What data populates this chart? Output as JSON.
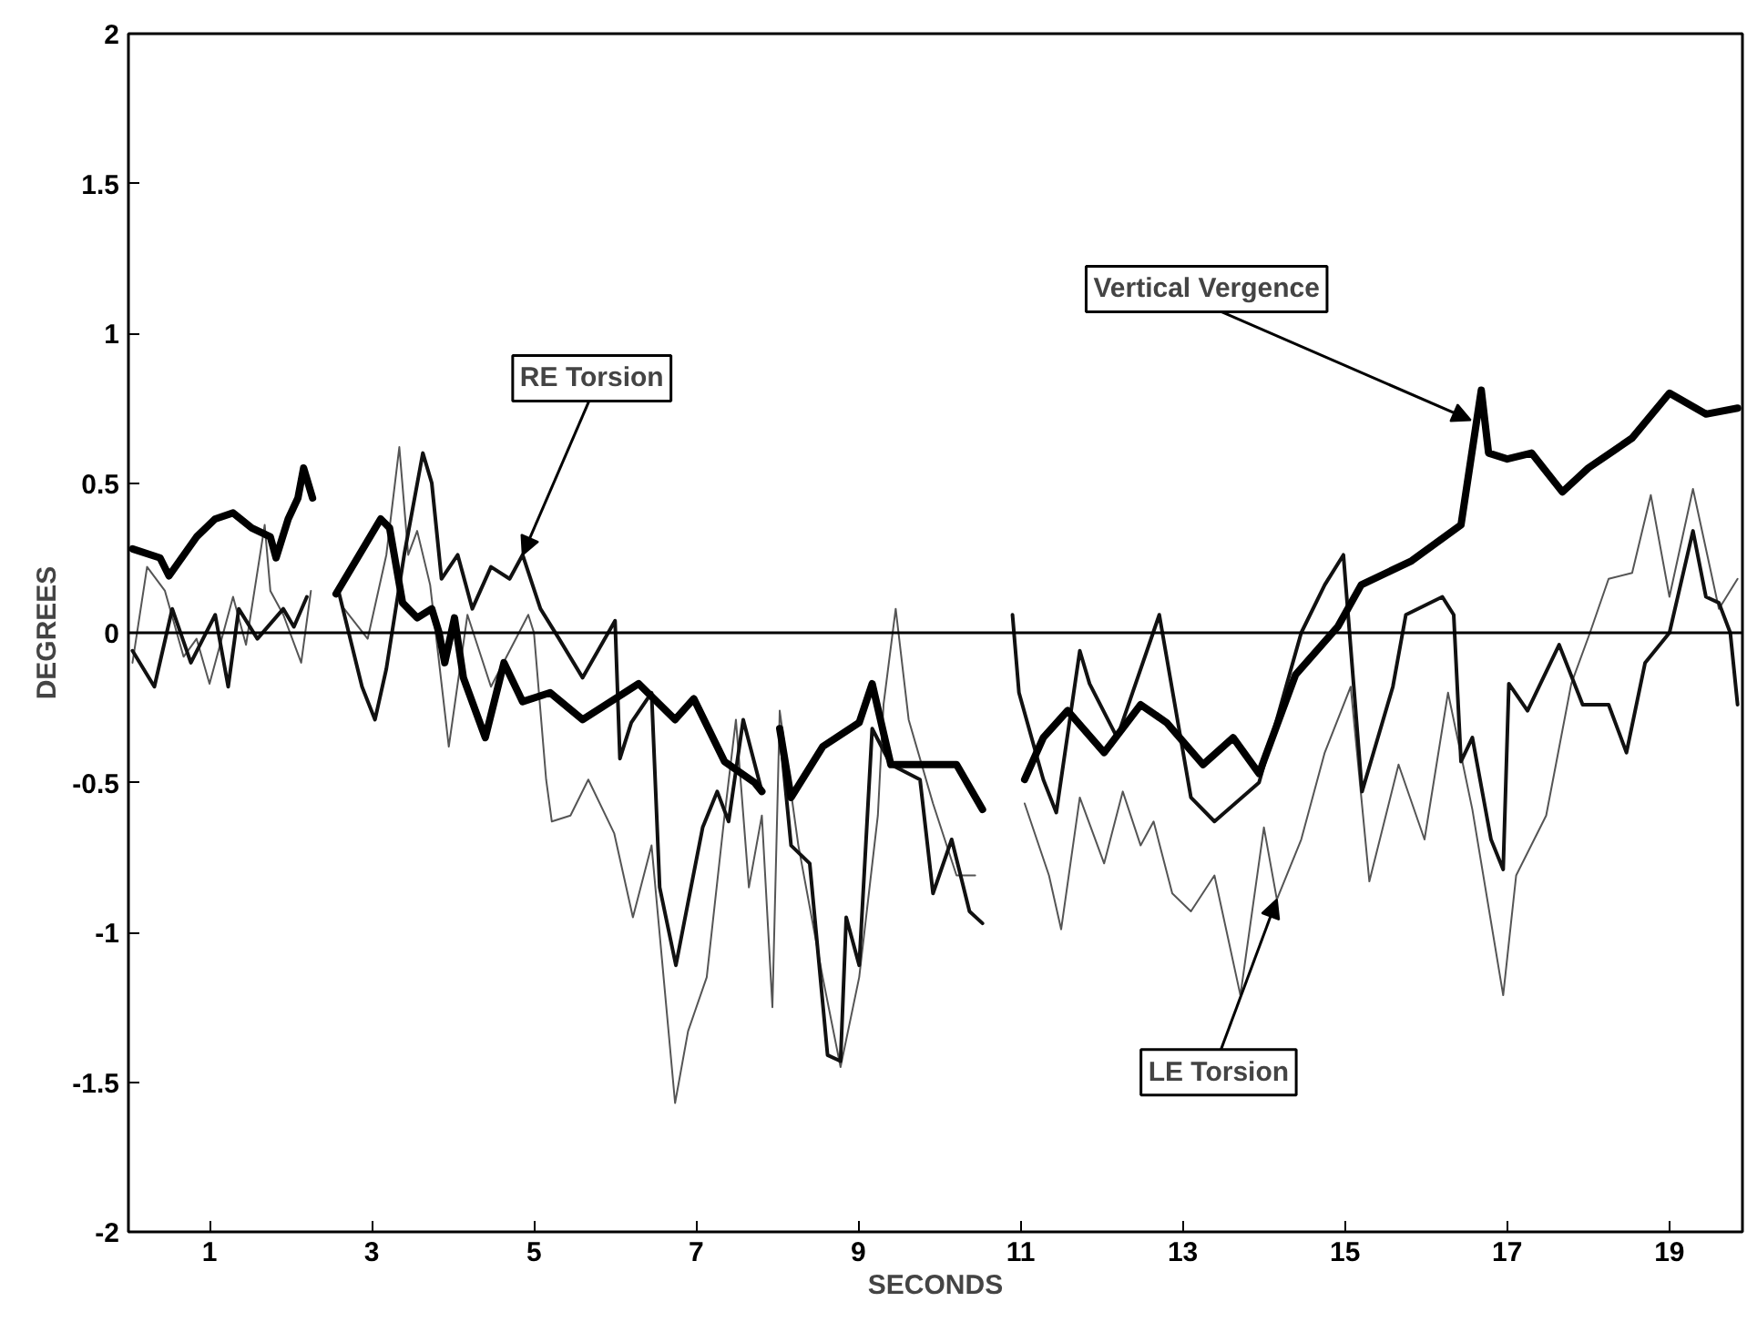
{
  "chart_data": {
    "type": "line",
    "xlabel": "SECONDS",
    "ylabel": "DEGREES",
    "xlim": [
      0,
      19.9
    ],
    "ylim": [
      -2,
      2
    ],
    "xticks": [
      1,
      3,
      5,
      7,
      9,
      11,
      13,
      15,
      17,
      19
    ],
    "yticks": [
      -2,
      -1.5,
      -1,
      -0.5,
      0,
      0.5,
      1,
      1.5,
      2
    ],
    "grid": false,
    "marker": "none",
    "line_style": "solid",
    "ref_lines": [
      {
        "axis": "y",
        "value": 0,
        "color": "#000000"
      }
    ],
    "annotations": [
      {
        "text": "RE Torsion",
        "x": 4.86,
        "y": 0.26
      },
      {
        "text": "Vertical Vergence",
        "x": 16.55,
        "y": 0.71
      },
      {
        "text": "LE Torsion",
        "x": 14.16,
        "y": -0.89
      }
    ],
    "series": [
      {
        "color": "#555555",
        "x": [
          0.05,
          0.23,
          0.45,
          0.68,
          0.84,
          1.0,
          1.29,
          1.45,
          1.68,
          1.75,
          1.91,
          2.13,
          2.25,
          2.45,
          2.66,
          2.95,
          3.18,
          3.34,
          3.45,
          3.56,
          3.72,
          3.95,
          4.18,
          4.47,
          4.93,
          5.0,
          5.15,
          5.22,
          5.45,
          5.67,
          5.99,
          6.22,
          6.45,
          6.74,
          6.9,
          7.13,
          7.35,
          7.49,
          7.65,
          7.81,
          7.94,
          8.03,
          8.26,
          8.56,
          8.78,
          9.01,
          9.24,
          9.31,
          9.46,
          9.62,
          9.92,
          10.21,
          10.44,
          10.7,
          11.05,
          11.35,
          11.5,
          11.73,
          12.03,
          12.26,
          12.48,
          12.64,
          12.87,
          13.1,
          13.39,
          13.71,
          14.0,
          14.16,
          14.46,
          14.75,
          15.07,
          15.3,
          15.66,
          15.98,
          16.27,
          16.57,
          16.95,
          17.11,
          17.48,
          17.79,
          18.02,
          18.25,
          18.54,
          18.77,
          19.0,
          19.29,
          19.61,
          19.84
        ],
        "values": [
          -0.1,
          0.22,
          0.14,
          -0.08,
          -0.02,
          -0.17,
          0.12,
          -0.04,
          0.36,
          0.14,
          0.06,
          -0.1,
          0.14,
          null,
          0.08,
          -0.02,
          0.26,
          0.62,
          0.26,
          0.34,
          0.16,
          -0.38,
          0.06,
          -0.18,
          0.06,
          0,
          -0.49,
          -0.63,
          -0.61,
          -0.49,
          -0.67,
          -0.95,
          -0.71,
          -1.57,
          -1.33,
          -1.15,
          -0.61,
          -0.29,
          -0.85,
          -0.61,
          -1.25,
          -0.26,
          -0.71,
          -1.15,
          -1.45,
          -1.15,
          -0.61,
          -0.24,
          0.08,
          -0.29,
          -0.57,
          -0.81,
          -0.81,
          null,
          -0.57,
          -0.81,
          -0.99,
          -0.55,
          -0.77,
          -0.53,
          -0.71,
          -0.63,
          -0.87,
          -0.93,
          -0.81,
          -1.21,
          -0.65,
          -0.89,
          -0.69,
          -0.4,
          -0.18,
          -0.83,
          -0.44,
          -0.69,
          -0.2,
          -0.59,
          -1.21,
          -0.81,
          -0.61,
          -0.17,
          0,
          0.18,
          0.2,
          0.46,
          0.12,
          0.48,
          0.08,
          0.18
        ]
      },
      {
        "color": "#111111",
        "x": [
          0.05,
          0.32,
          0.54,
          0.77,
          1.07,
          1.23,
          1.36,
          1.59,
          1.91,
          2.04,
          2.2,
          2.4,
          2.59,
          2.88,
          3.04,
          3.18,
          3.4,
          3.63,
          3.74,
          3.86,
          4.06,
          4.24,
          4.47,
          4.7,
          4.86,
          5.08,
          5.31,
          5.6,
          6.0,
          6.06,
          6.2,
          6.45,
          6.55,
          6.75,
          6.9,
          7.08,
          7.26,
          7.4,
          7.58,
          7.81,
          7.92,
          8.03,
          8.17,
          8.4,
          8.62,
          8.78,
          8.85,
          9.01,
          9.17,
          9.4,
          9.76,
          9.92,
          10.15,
          10.37,
          10.53,
          10.7,
          10.9,
          10.98,
          11.28,
          11.44,
          11.73,
          11.85,
          12.19,
          12.71,
          13.1,
          13.39,
          13.94,
          14.46,
          14.75,
          14.98,
          15.21,
          15.59,
          15.75,
          16.2,
          16.34,
          16.43,
          16.57,
          16.8,
          16.95,
          17.02,
          17.25,
          17.64,
          17.93,
          18.25,
          18.47,
          18.7,
          19.0,
          19.29,
          19.45,
          19.61,
          19.75,
          19.84
        ],
        "values": [
          -0.06,
          -0.18,
          0.08,
          -0.1,
          0.06,
          -0.18,
          0.08,
          -0.02,
          0.08,
          0.02,
          0.12,
          null,
          0.14,
          -0.18,
          -0.29,
          -0.12,
          0.26,
          0.6,
          0.5,
          0.18,
          0.26,
          0.08,
          0.22,
          0.18,
          0.26,
          0.08,
          -0.02,
          -0.15,
          0.04,
          -0.42,
          -0.3,
          -0.2,
          -0.85,
          -1.11,
          -0.9,
          -0.65,
          -0.53,
          -0.63,
          -0.29,
          -0.53,
          null,
          -0.32,
          -0.71,
          -0.77,
          -1.41,
          -1.43,
          -0.95,
          -1.11,
          -0.32,
          -0.44,
          -0.49,
          -0.87,
          -0.69,
          -0.93,
          -0.97,
          null,
          0.06,
          -0.2,
          -0.49,
          -0.6,
          -0.06,
          -0.17,
          -0.35,
          0.06,
          -0.55,
          -0.63,
          -0.5,
          0,
          0.16,
          0.26,
          -0.53,
          -0.18,
          0.06,
          0.12,
          0.06,
          -0.43,
          -0.35,
          -0.69,
          -0.79,
          -0.17,
          -0.26,
          -0.04,
          -0.24,
          -0.24,
          -0.4,
          -0.1,
          0,
          0.34,
          0.12,
          0.1,
          0,
          -0.24
        ]
      },
      {
        "color": "#000000",
        "x": [
          0.05,
          0.39,
          0.5,
          0.84,
          1.07,
          1.29,
          1.52,
          1.75,
          1.82,
          1.97,
          2.09,
          2.16,
          2.27,
          2.4,
          2.56,
          3.11,
          3.22,
          3.38,
          3.56,
          3.74,
          3.83,
          3.9,
          4.02,
          4.13,
          4.4,
          4.63,
          4.86,
          5.2,
          5.6,
          6.29,
          6.74,
          6.97,
          7.35,
          7.72,
          7.81,
          7.92,
          8.03,
          8.17,
          8.56,
          9.01,
          9.17,
          9.4,
          9.76,
          10.21,
          10.53,
          10.8,
          11.05,
          11.28,
          11.58,
          12.03,
          12.48,
          12.8,
          13.25,
          13.62,
          13.94,
          14.39,
          14.91,
          15.2,
          15.82,
          16.43,
          16.68,
          16.77,
          17.0,
          17.3,
          17.68,
          18.0,
          18.54,
          19.0,
          19.45,
          19.84
        ],
        "values": [
          0.28,
          0.25,
          0.19,
          0.32,
          0.38,
          0.4,
          0.35,
          0.32,
          0.25,
          0.38,
          0.45,
          0.55,
          0.45,
          null,
          0.13,
          0.38,
          0.35,
          0.1,
          0.05,
          0.08,
          0,
          -0.1,
          0.05,
          -0.15,
          -0.35,
          -0.1,
          -0.23,
          -0.2,
          -0.29,
          -0.17,
          -0.29,
          -0.22,
          -0.43,
          -0.5,
          -0.53,
          null,
          -0.32,
          -0.55,
          -0.38,
          -0.3,
          -0.17,
          -0.44,
          -0.44,
          -0.44,
          -0.59,
          null,
          -0.49,
          -0.35,
          -0.26,
          -0.4,
          -0.24,
          -0.3,
          -0.44,
          -0.35,
          -0.47,
          -0.14,
          0.02,
          0.16,
          0.24,
          0.36,
          0.81,
          0.6,
          0.58,
          0.6,
          0.47,
          0.55,
          0.65,
          0.8,
          0.73,
          0.75
        ]
      }
    ]
  }
}
